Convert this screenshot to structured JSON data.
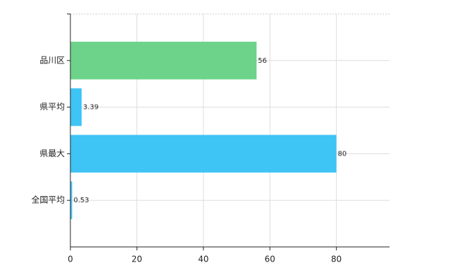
{
  "chart_data": {
    "type": "hbar",
    "categories": [
      "品川区",
      "県平均",
      "県最大",
      "全国平均"
    ],
    "values": [
      56,
      3.39,
      80,
      0.53
    ],
    "colors": [
      "#6dd38a",
      "#3ec4f5",
      "#3ec4f5",
      "#3ec4f5"
    ],
    "xlim": [
      0,
      96
    ],
    "xticks": [
      0,
      20,
      40,
      60,
      80
    ],
    "grid": true
  }
}
